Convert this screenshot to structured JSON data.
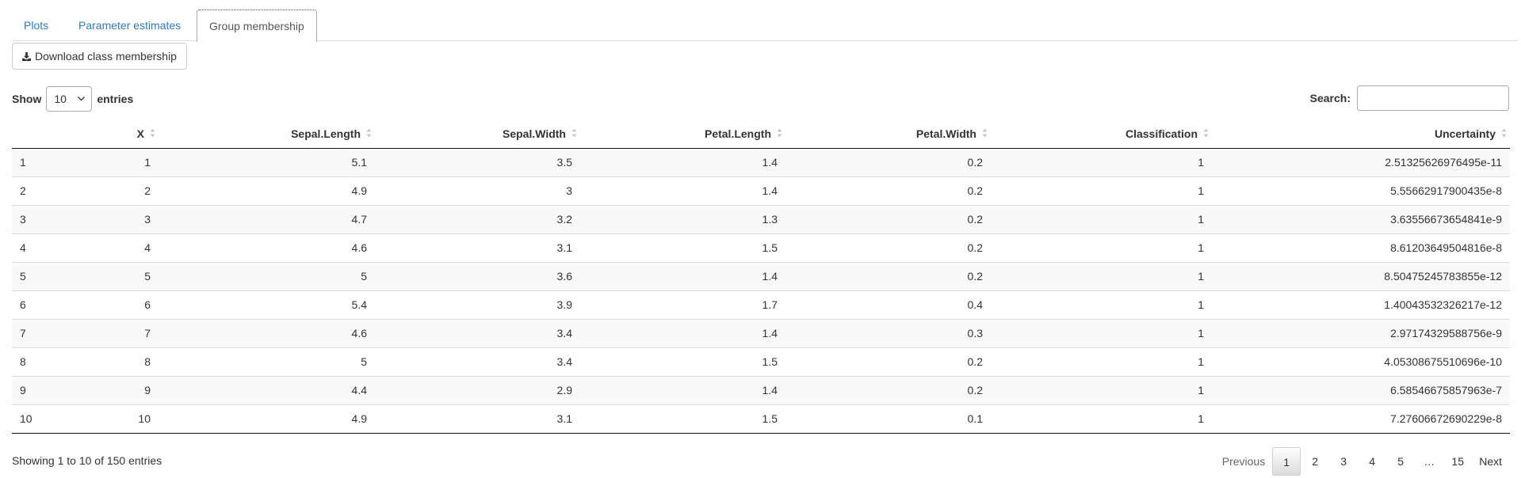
{
  "tabs": [
    {
      "label": "Plots"
    },
    {
      "label": "Parameter estimates"
    },
    {
      "label": "Group membership"
    }
  ],
  "download_label": "Download class membership",
  "length": {
    "show": "Show",
    "value": "10",
    "entries": "entries"
  },
  "search": {
    "label": "Search:",
    "value": ""
  },
  "table": {
    "headers": [
      "",
      "X",
      "Sepal.Length",
      "Sepal.Width",
      "Petal.Length",
      "Petal.Width",
      "Classification",
      "Uncertainty"
    ],
    "rows": [
      [
        "1",
        "1",
        "5.1",
        "3.5",
        "1.4",
        "0.2",
        "1",
        "2.51325626976495e-11"
      ],
      [
        "2",
        "2",
        "4.9",
        "3",
        "1.4",
        "0.2",
        "1",
        "5.55662917900435e-8"
      ],
      [
        "3",
        "3",
        "4.7",
        "3.2",
        "1.3",
        "0.2",
        "1",
        "3.63556673654841e-9"
      ],
      [
        "4",
        "4",
        "4.6",
        "3.1",
        "1.5",
        "0.2",
        "1",
        "8.61203649504816e-8"
      ],
      [
        "5",
        "5",
        "5",
        "3.6",
        "1.4",
        "0.2",
        "1",
        "8.50475245783855e-12"
      ],
      [
        "6",
        "6",
        "5.4",
        "3.9",
        "1.7",
        "0.4",
        "1",
        "1.40043532326217e-12"
      ],
      [
        "7",
        "7",
        "4.6",
        "3.4",
        "1.4",
        "0.3",
        "1",
        "2.97174329588756e-9"
      ],
      [
        "8",
        "8",
        "5",
        "3.4",
        "1.5",
        "0.2",
        "1",
        "4.05308675510696e-10"
      ],
      [
        "9",
        "9",
        "4.4",
        "2.9",
        "1.4",
        "0.2",
        "1",
        "6.58546675857963e-7"
      ],
      [
        "10",
        "10",
        "4.9",
        "3.1",
        "1.5",
        "0.1",
        "1",
        "7.27606672690229e-8"
      ]
    ]
  },
  "info": "Showing 1 to 10 of 150 entries",
  "pagination": {
    "previous": "Previous",
    "pages": [
      "1",
      "2",
      "3",
      "4",
      "5",
      "…",
      "15"
    ],
    "next": "Next"
  },
  "colors": {
    "link": "#337ab7",
    "text": "#333333"
  }
}
